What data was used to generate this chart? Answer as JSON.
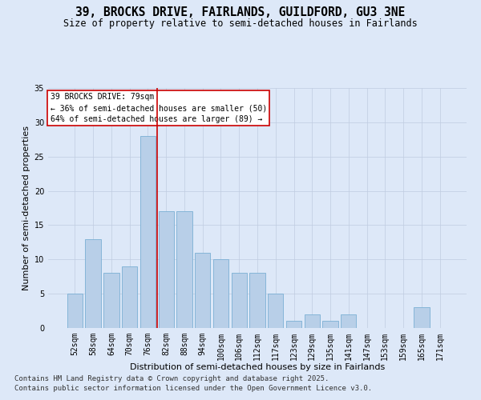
{
  "title_line1": "39, BROCKS DRIVE, FAIRLANDS, GUILDFORD, GU3 3NE",
  "title_line2": "Size of property relative to semi-detached houses in Fairlands",
  "xlabel": "Distribution of semi-detached houses by size in Fairlands",
  "ylabel": "Number of semi-detached properties",
  "categories": [
    "52sqm",
    "58sqm",
    "64sqm",
    "70sqm",
    "76sqm",
    "82sqm",
    "88sqm",
    "94sqm",
    "100sqm",
    "106sqm",
    "112sqm",
    "117sqm",
    "123sqm",
    "129sqm",
    "135sqm",
    "141sqm",
    "147sqm",
    "153sqm",
    "159sqm",
    "165sqm",
    "171sqm"
  ],
  "values": [
    5,
    13,
    8,
    9,
    28,
    17,
    17,
    11,
    10,
    8,
    8,
    5,
    1,
    2,
    1,
    2,
    0,
    0,
    0,
    3,
    0
  ],
  "bar_color": "#b8cfe8",
  "bar_edge_color": "#7aafd4",
  "vline_x": 4.5,
  "vline_color": "#cc0000",
  "annotation_text": "39 BROCKS DRIVE: 79sqm\n← 36% of semi-detached houses are smaller (50)\n64% of semi-detached houses are larger (89) →",
  "annotation_box_facecolor": "#ffffff",
  "annotation_box_edgecolor": "#cc0000",
  "ylim": [
    0,
    35
  ],
  "yticks": [
    0,
    5,
    10,
    15,
    20,
    25,
    30,
    35
  ],
  "background_color": "#dde8f8",
  "plot_bg_color": "#dde8f8",
  "grid_color": "#c0cce0",
  "footer_line1": "Contains HM Land Registry data © Crown copyright and database right 2025.",
  "footer_line2": "Contains public sector information licensed under the Open Government Licence v3.0.",
  "title_fontsize": 10.5,
  "subtitle_fontsize": 8.5,
  "label_fontsize": 8,
  "tick_fontsize": 7,
  "annot_fontsize": 7,
  "footer_fontsize": 6.5
}
